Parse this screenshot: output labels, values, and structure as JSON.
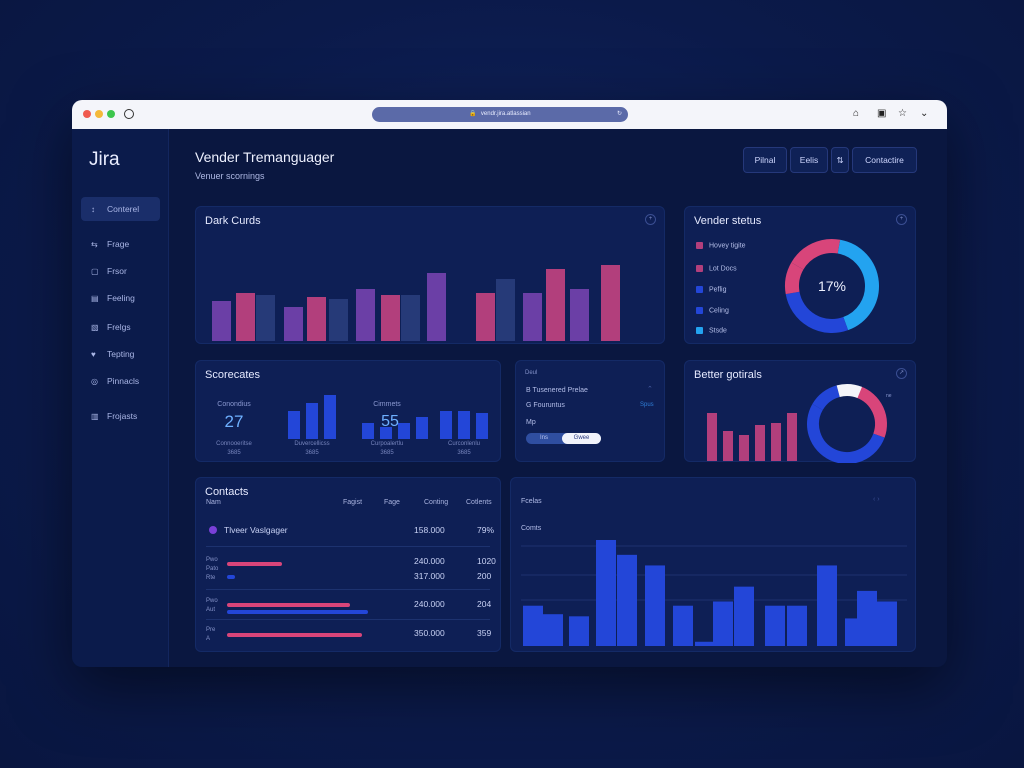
{
  "browser": {
    "url": "https://vender.jira.site/dashboard",
    "url_display": "vendr.jira.atlassian"
  },
  "colors": {
    "bg": "#0b1a4a",
    "card": "#0e1f55",
    "purple": "#6b3fa6",
    "magenta": "#b23f7c",
    "navy": "#263a78",
    "blue": "#2346d8",
    "cyan": "#23a3f0",
    "pink": "#d8457a"
  },
  "sidebar": {
    "brand": "Jira",
    "items": [
      {
        "label": "Conterel",
        "icon": "arrow-icon",
        "glyph": "↕"
      },
      {
        "label": "Frage",
        "icon": "link-icon",
        "glyph": "⇆"
      },
      {
        "label": "Frsor",
        "icon": "square-icon",
        "glyph": "▢"
      },
      {
        "label": "Feeling",
        "icon": "file-icon",
        "glyph": "▤"
      },
      {
        "label": "Frelgs",
        "icon": "page-icon",
        "glyph": "▧"
      },
      {
        "label": "Tepting",
        "icon": "heart-icon",
        "glyph": "♥"
      },
      {
        "label": "Pinnacls",
        "icon": "globe-icon",
        "glyph": "◎"
      },
      {
        "label": "Frojasts",
        "icon": "chart-icon",
        "glyph": "▥"
      }
    ]
  },
  "header": {
    "title": "Vender Tremanguager",
    "subtitle": "Venuer scornings",
    "buttons": [
      "Pilnal",
      "Eelis",
      "⇅",
      "Contactire"
    ]
  },
  "cards": {
    "dark_cards": {
      "title": "Dark Curds",
      "menu": "+"
    },
    "vendor_status": {
      "title": "Vender stetus",
      "menu": "+",
      "center": "17%"
    },
    "scorecards": {
      "title": "Scorecates",
      "kpis": [
        {
          "label": "Conondius",
          "value": "27",
          "foot1": "Connooeritse",
          "foot2": "3685"
        },
        {
          "label": "Cimmets",
          "value": "55",
          "foot1": "Duvercellicss",
          "foot2": "3685"
        },
        {
          "label": "",
          "value": "",
          "foot1": "Curpoalertlu",
          "foot2": "3685"
        },
        {
          "label": "",
          "value": "",
          "foot1": "Curconlenlu",
          "foot2": "3685"
        }
      ]
    },
    "mini_list": {
      "title": "Deul",
      "items": [
        "B Tusenered Prelae",
        "G Fouruntus"
      ],
      "bold": "Mp",
      "toggle_off": "Ins",
      "toggle_on": "Gwee",
      "link": "Spus"
    },
    "better": {
      "title": "Better gotirals",
      "menu": "↗",
      "badge": "ne"
    },
    "contacts": {
      "title": "Contacts",
      "columns": [
        "Nam",
        "Fagist",
        "Fage",
        "Conting",
        "Cotlents"
      ],
      "rows": [
        {
          "name": "Tlveer Vaslgager",
          "small": "",
          "v1": "158.000",
          "v2": "79%"
        },
        {
          "name": "",
          "small": "Pwo Pato Rte",
          "v1": "240.000",
          "v1b": "317.000",
          "v2": "1020",
          "v2b": "200"
        },
        {
          "name": "",
          "small": "Pwo Aut",
          "v1": "240.000",
          "v2": "204"
        },
        {
          "name": "",
          "small": "Pre A",
          "v1": "350.000",
          "v2": "359"
        }
      ]
    },
    "bottom_chart": {
      "title": "Fcelas",
      "subtitle": "Comts"
    }
  },
  "chart_data": [
    {
      "type": "bar",
      "title": "Dark Curds",
      "series": [
        {
          "values": [
            40,
            48,
            34,
            44,
            52,
            46,
            68,
            48,
            48,
            72,
            52,
            76
          ]
        },
        {
          "values": [
            46,
            0,
            42,
            0,
            46,
            0,
            62,
            0,
            58,
            0,
            0,
            0
          ]
        }
      ],
      "ylim": [
        0,
        80
      ]
    },
    {
      "type": "pie",
      "title": "Vender stetus",
      "labels": [
        "Hovey tigite",
        "Lot Docs",
        "Peflig",
        "Celing",
        "Stsde"
      ],
      "values": [
        35,
        30,
        20,
        10,
        5
      ],
      "center_label": "17%"
    },
    {
      "type": "bar",
      "title": "Scorecates",
      "groups": [
        [
          28,
          36,
          44
        ],
        [
          16,
          12,
          16,
          22
        ],
        [
          28,
          28,
          26
        ]
      ]
    },
    {
      "type": "bar",
      "title": "Better gotirals",
      "values": [
        48,
        30,
        26,
        36,
        38,
        48
      ],
      "donut": [
        45,
        35,
        15,
        5
      ]
    },
    {
      "type": "bar",
      "title": "Contacts",
      "values": [
        0.32,
        0.17,
        0.34,
        0.44,
        0.53
      ]
    },
    {
      "type": "bar",
      "title": "Fcelas",
      "ylabel": "Comts",
      "values": [
        38,
        30,
        28,
        0,
        100,
        86,
        76,
        0,
        38,
        4,
        42,
        56,
        0,
        36,
        36,
        0,
        76,
        0,
        26,
        52,
        42
      ],
      "ylim": [
        0,
        100
      ]
    }
  ]
}
